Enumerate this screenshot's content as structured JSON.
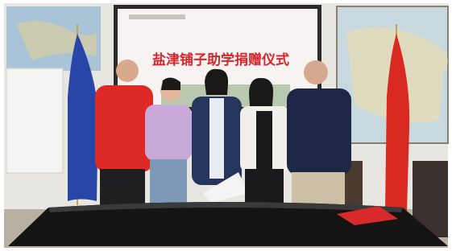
{
  "screen": {
    "title": "盐津铺子助学捐赠仪式"
  }
}
